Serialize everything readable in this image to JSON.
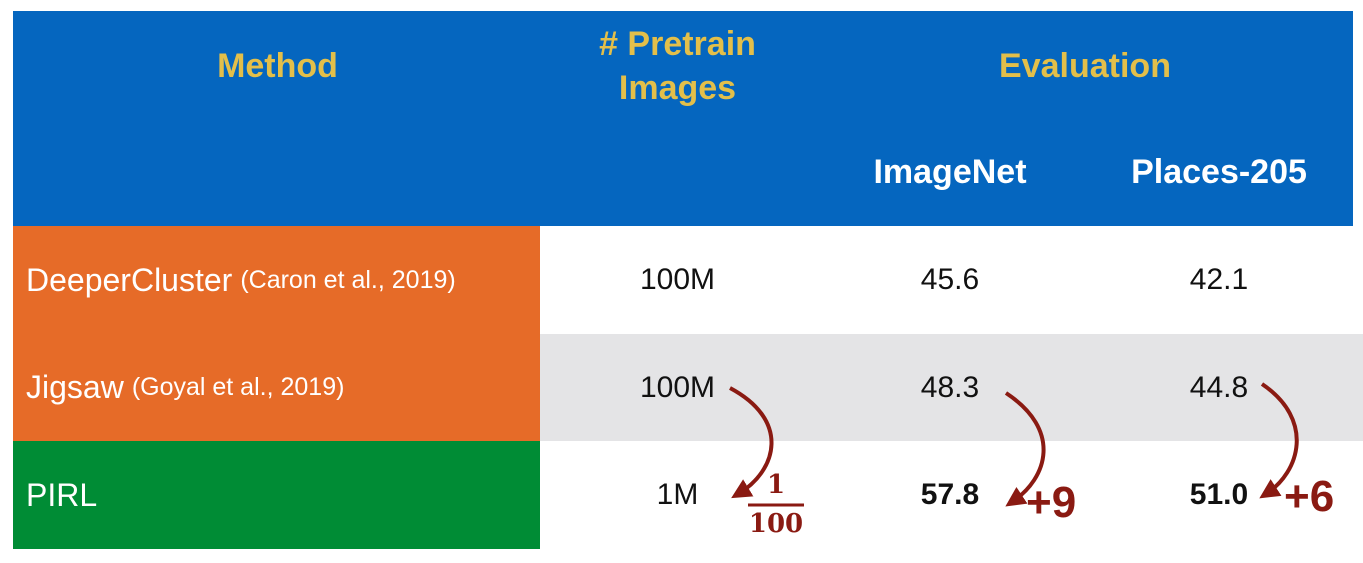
{
  "header": {
    "method": "Method",
    "pretrain_line1": "# Pretrain",
    "pretrain_line2": "Images",
    "evaluation": "Evaluation",
    "imagenet": "ImageNet",
    "places": "Places-205"
  },
  "rows": [
    {
      "method": "DeeperCluster",
      "citation": "(Caron et al., 2019)",
      "pretrain": "100M",
      "imagenet": "45.6",
      "places": "42.1"
    },
    {
      "method": "Jigsaw",
      "citation": "(Goyal et al., 2019)",
      "pretrain": "100M",
      "imagenet": "48.3",
      "places": "44.8"
    },
    {
      "method": "PIRL",
      "citation": "",
      "pretrain": "1M",
      "imagenet": "57.8",
      "places": "51.0"
    }
  ],
  "annotations": {
    "fraction_numerator": "1",
    "fraction_denominator": "100",
    "imagenet_gain": "+9",
    "places_gain": "+6"
  },
  "colors": {
    "header": "#0566bf",
    "header_text": "#e3bf4a",
    "row_deepercluster": "#e66b28",
    "row_jigsaw": "#e66b28",
    "row_pirl": "#008c35",
    "row_stripe": "#e4e4e6",
    "arrow": "#8a1a12"
  }
}
